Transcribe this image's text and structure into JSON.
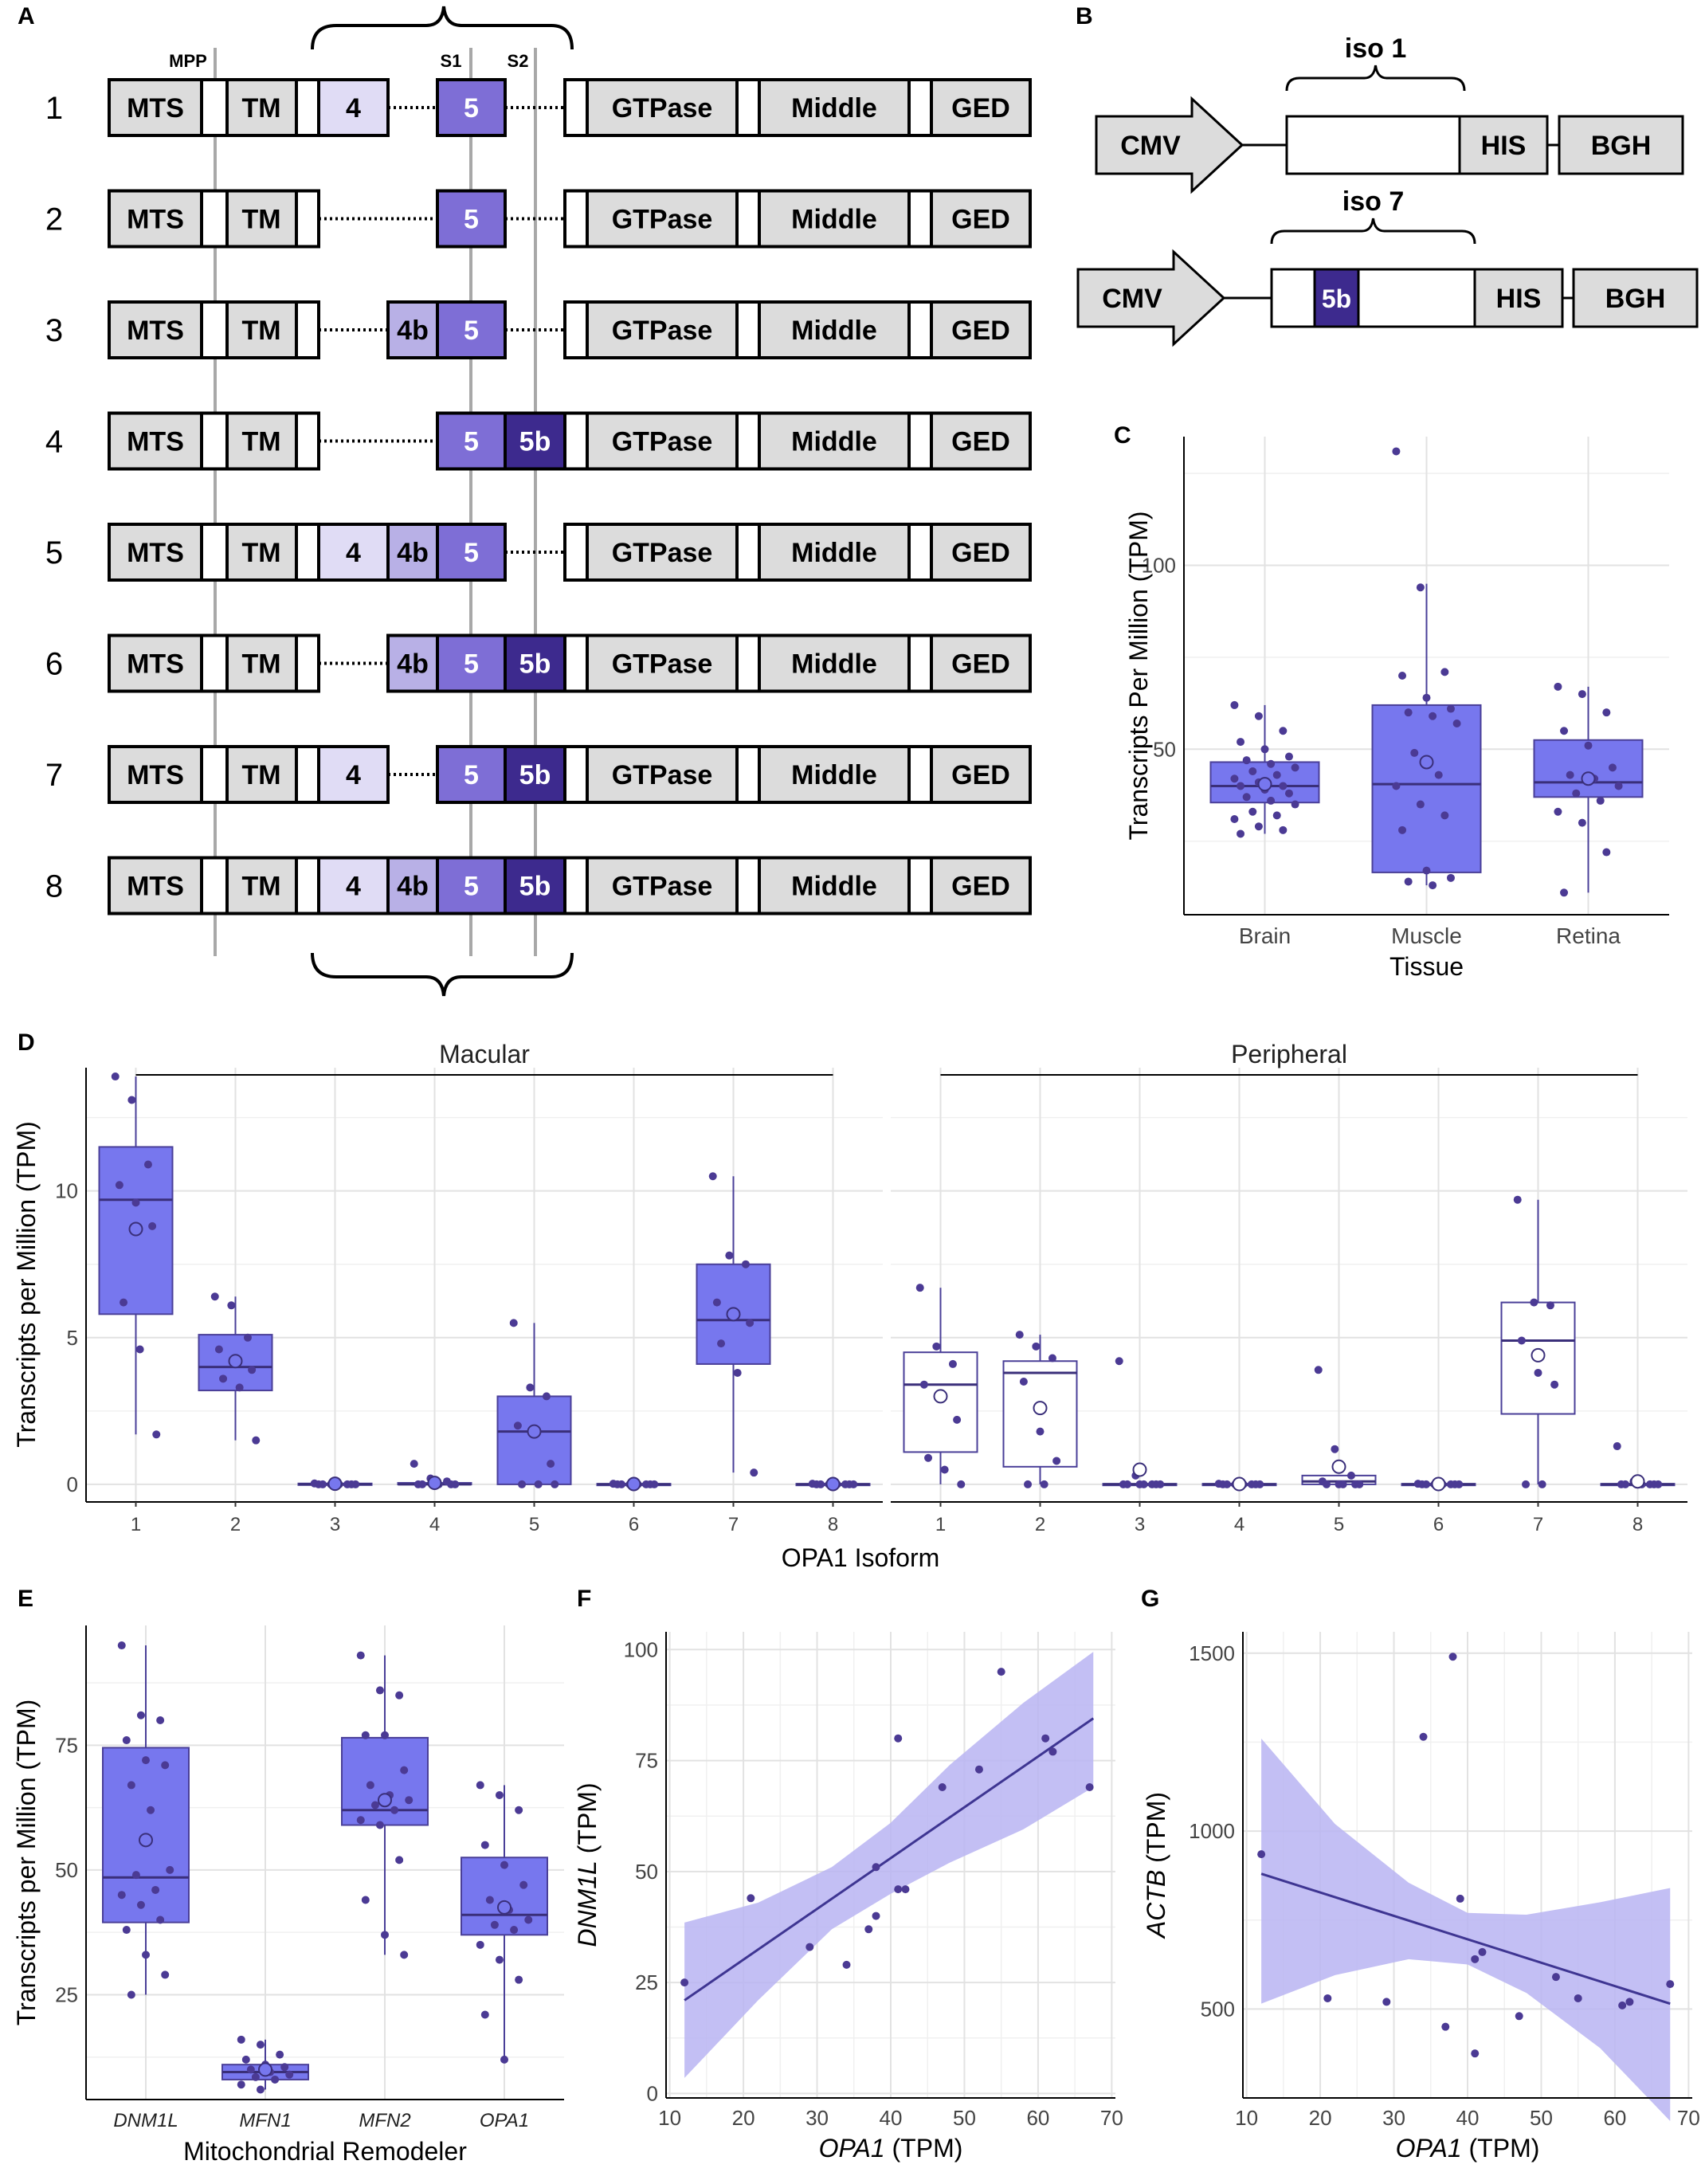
{
  "colors": {
    "box_fill": "#7777EE",
    "box_edge": "#4A3F98",
    "point": "#4B3A94",
    "exon4": "#E0DCF5",
    "exon4b": "#B8B0E6",
    "exon5": "#7E6ED6",
    "exon5b": "#3D2A8E",
    "gray_box": "#DCDCDC",
    "ci_band": "#B8B4F2",
    "reg_line": "#3E3592"
  },
  "panel_letters": [
    "A",
    "B",
    "C",
    "D",
    "E",
    "F",
    "G"
  ],
  "panel_a": {
    "markers": {
      "mpp": "MPP",
      "s1": "S1",
      "s2": "S2"
    },
    "domains": {
      "mts": "MTS",
      "tm": "TM",
      "gtpase": "GTPase",
      "middle": "Middle",
      "ged": "GED"
    },
    "exon_labels": {
      "e4": "4",
      "e4b": "4b",
      "e5": "5",
      "e5b": "5b"
    },
    "isoforms": [
      {
        "label": "1",
        "exons": [
          "4",
          "5"
        ]
      },
      {
        "label": "2",
        "exons": [
          "5"
        ]
      },
      {
        "label": "3",
        "exons": [
          "4b",
          "5"
        ]
      },
      {
        "label": "4",
        "exons": [
          "5",
          "5b"
        ]
      },
      {
        "label": "5",
        "exons": [
          "4",
          "4b",
          "5"
        ]
      },
      {
        "label": "6",
        "exons": [
          "4b",
          "5",
          "5b"
        ]
      },
      {
        "label": "7",
        "exons": [
          "4",
          "5",
          "5b"
        ]
      },
      {
        "label": "8",
        "exons": [
          "4",
          "4b",
          "5",
          "5b"
        ]
      }
    ]
  },
  "panel_b": {
    "constructs": [
      {
        "bracket_label": "iso 1",
        "promoter": "CMV",
        "insert": "",
        "tag": "HIS",
        "terminator": "BGH"
      },
      {
        "bracket_label": "iso 7",
        "promoter": "CMV",
        "insert": "5b",
        "tag": "HIS",
        "terminator": "BGH"
      }
    ]
  },
  "chart_data": [
    {
      "id": "C",
      "type": "box",
      "xlabel": "Tissue",
      "ylabel": "Transcripts Per Million (TPM)",
      "ylim": [
        5,
        135
      ],
      "yticks": [
        50,
        100
      ],
      "categories": [
        "Brain",
        "Muscle",
        "Retina"
      ],
      "boxes": [
        {
          "q1": 35.5,
          "median": 40,
          "q3": 46.5,
          "whisker_low": 27,
          "whisker_high": 62,
          "mean": 40.5,
          "points": [
            62,
            59,
            55,
            52,
            50,
            48,
            47,
            46,
            45,
            44,
            43,
            42,
            41,
            40,
            40,
            39,
            38,
            37,
            36,
            35,
            33,
            32,
            31,
            29,
            28,
            27
          ]
        },
        {
          "q1": 16.5,
          "median": 40.5,
          "q3": 62,
          "whisker_low": 13,
          "whisker_high": 95,
          "mean": 46.5,
          "points": [
            131,
            94,
            71,
            70,
            64,
            61,
            60,
            59,
            57,
            49,
            43,
            40,
            35,
            32,
            28,
            17,
            15,
            14,
            13
          ]
        },
        {
          "q1": 37,
          "median": 41,
          "q3": 52.5,
          "whisker_low": 11,
          "whisker_high": 67,
          "mean": 42,
          "points": [
            67,
            65,
            60,
            55,
            51,
            45,
            43,
            42,
            40,
            38,
            36,
            33,
            30,
            22,
            11
          ]
        }
      ]
    },
    {
      "id": "D",
      "type": "box",
      "xlabel": "OPA1 Isoform",
      "ylabel": "Transcripts per Million (TPM)",
      "ylim": [
        -0.6,
        14.2
      ],
      "yticks": [
        0,
        5,
        10
      ],
      "facets": [
        {
          "name": "Macular",
          "filled": true,
          "categories": [
            "1",
            "2",
            "3",
            "4",
            "5",
            "6",
            "7",
            "8"
          ],
          "boxes": [
            {
              "q1": 5.8,
              "median": 9.7,
              "q3": 11.5,
              "whisker_low": 1.7,
              "whisker_high": 13.9,
              "mean": 8.7,
              "points": [
                13.9,
                13.1,
                10.9,
                10.2,
                9.6,
                8.8,
                6.2,
                4.6,
                1.7
              ]
            },
            {
              "q1": 3.2,
              "median": 4.0,
              "q3": 5.1,
              "whisker_low": 1.5,
              "whisker_high": 6.4,
              "mean": 4.2,
              "points": [
                6.4,
                6.1,
                5.0,
                4.6,
                4.3,
                3.9,
                3.6,
                3.3,
                1.5
              ]
            },
            {
              "q1": 0,
              "median": 0,
              "q3": 0.03,
              "whisker_low": 0,
              "whisker_high": 0.03,
              "mean": 0.02,
              "points": [
                0.03,
                0,
                0,
                0,
                0,
                0,
                0,
                0,
                0
              ]
            },
            {
              "q1": 0,
              "median": 0,
              "q3": 0.05,
              "whisker_low": 0,
              "whisker_high": 0.05,
              "mean": 0.05,
              "points": [
                0.7,
                0.2,
                0.1,
                0,
                0,
                0,
                0,
                0,
                0
              ]
            },
            {
              "q1": 0,
              "median": 1.8,
              "q3": 3.0,
              "whisker_low": 0,
              "whisker_high": 5.5,
              "mean": 1.8,
              "points": [
                5.5,
                3.3,
                3.0,
                2.0,
                1.7,
                0.7,
                0,
                0,
                0
              ]
            },
            {
              "q1": 0,
              "median": 0,
              "q3": 0.02,
              "whisker_low": 0,
              "whisker_high": 0.02,
              "mean": 0.01,
              "points": [
                0.02,
                0,
                0,
                0,
                0,
                0,
                0,
                0,
                0
              ]
            },
            {
              "q1": 4.1,
              "median": 5.6,
              "q3": 7.5,
              "whisker_low": 0.4,
              "whisker_high": 10.5,
              "mean": 5.8,
              "points": [
                10.5,
                7.8,
                7.5,
                6.2,
                5.8,
                5.5,
                4.8,
                3.8,
                0.4
              ]
            },
            {
              "q1": 0,
              "median": 0,
              "q3": 0.02,
              "whisker_low": 0,
              "whisker_high": 0.02,
              "mean": 0.01,
              "points": [
                0.02,
                0,
                0,
                0,
                0,
                0,
                0,
                0,
                0
              ]
            }
          ]
        },
        {
          "name": "Peripheral",
          "filled": false,
          "categories": [
            "1",
            "2",
            "3",
            "4",
            "5",
            "6",
            "7",
            "8"
          ],
          "boxes": [
            {
              "q1": 1.1,
              "median": 3.4,
              "q3": 4.5,
              "whisker_low": 0,
              "whisker_high": 6.7,
              "mean": 3.0,
              "points": [
                6.7,
                4.7,
                4.1,
                3.4,
                2.9,
                2.2,
                0.9,
                0.5,
                0
              ]
            },
            {
              "q1": 0.6,
              "median": 3.8,
              "q3": 4.2,
              "whisker_low": 0,
              "whisker_high": 5.1,
              "mean": 2.6,
              "points": [
                5.1,
                4.7,
                4.3,
                3.5,
                1.8,
                0.8,
                0,
                0
              ]
            },
            {
              "q1": 0,
              "median": 0,
              "q3": 0.02,
              "whisker_low": 0,
              "whisker_high": 0.02,
              "mean": 0.5,
              "points": [
                4.2,
                0.3,
                0,
                0,
                0,
                0,
                0,
                0,
                0
              ]
            },
            {
              "q1": 0,
              "median": 0,
              "q3": 0.02,
              "whisker_low": 0,
              "whisker_high": 0.02,
              "mean": 0.01,
              "points": [
                0.02,
                0,
                0,
                0,
                0,
                0,
                0,
                0,
                0
              ]
            },
            {
              "q1": 0,
              "median": 0.1,
              "q3": 0.3,
              "whisker_low": 0,
              "whisker_high": 0.3,
              "mean": 0.6,
              "points": [
                3.9,
                1.2,
                0.3,
                0.1,
                0,
                0,
                0,
                0,
                0
              ]
            },
            {
              "q1": 0,
              "median": 0,
              "q3": 0.02,
              "whisker_low": 0,
              "whisker_high": 0.02,
              "mean": 0.01,
              "points": [
                0.02,
                0,
                0,
                0,
                0,
                0,
                0,
                0,
                0
              ]
            },
            {
              "q1": 2.4,
              "median": 4.9,
              "q3": 6.2,
              "whisker_low": 0,
              "whisker_high": 9.7,
              "mean": 4.4,
              "points": [
                9.7,
                6.2,
                6.1,
                4.9,
                3.8,
                3.4,
                0,
                0
              ]
            },
            {
              "q1": 0,
              "median": 0,
              "q3": 0.02,
              "whisker_low": 0,
              "whisker_high": 0.02,
              "mean": 0.1,
              "points": [
                1.3,
                0.1,
                0,
                0,
                0,
                0,
                0,
                0,
                0
              ]
            }
          ]
        }
      ]
    },
    {
      "id": "E",
      "type": "box",
      "xlabel": "Mitochondrial Remodeler",
      "ylabel": "Transcripts per Million (TPM)",
      "ylim": [
        4,
        99
      ],
      "yticks": [
        25,
        50,
        75
      ],
      "categories": [
        "DNM1L",
        "MFN1",
        "MFN2",
        "OPA1"
      ],
      "boxes": [
        {
          "q1": 39.5,
          "median": 48.5,
          "q3": 74.5,
          "whisker_low": 25,
          "whisker_high": 95,
          "mean": 56,
          "points": [
            95,
            81,
            80,
            76,
            72,
            71,
            67,
            62,
            50,
            49,
            46,
            45,
            43,
            40,
            38,
            33,
            29,
            25
          ]
        },
        {
          "q1": 8,
          "median": 9.5,
          "q3": 11,
          "whisker_low": 6,
          "whisker_high": 16,
          "mean": 10,
          "points": [
            16,
            15,
            13,
            12,
            11,
            10.5,
            10,
            9.5,
            9,
            8.5,
            8,
            7,
            6
          ]
        },
        {
          "q1": 59,
          "median": 62,
          "q3": 76.5,
          "whisker_low": 33,
          "whisker_high": 93,
          "mean": 64,
          "points": [
            93,
            86,
            85,
            77,
            77,
            70,
            67,
            65,
            64,
            63,
            62,
            60,
            59,
            52,
            44,
            37,
            33
          ]
        },
        {
          "q1": 37,
          "median": 41,
          "q3": 52.5,
          "whisker_low": 12,
          "whisker_high": 67,
          "mean": 42.5,
          "points": [
            67,
            65,
            62,
            55,
            51,
            47,
            44,
            42,
            40,
            39,
            38,
            35,
            32,
            28,
            21,
            12
          ]
        }
      ]
    },
    {
      "id": "F",
      "type": "scatter",
      "xlabel_gene": "OPA1",
      "xlabel_unit": " (TPM)",
      "ylabel_gene": "DNM1L",
      "ylabel_unit": " (TPM)",
      "xlim": [
        9.5,
        70.5
      ],
      "ylim": [
        -1,
        104
      ],
      "xticks": [
        10,
        20,
        30,
        40,
        50,
        60,
        70
      ],
      "yticks": [
        0,
        25,
        50,
        75,
        100
      ],
      "points": [
        [
          12,
          25
        ],
        [
          21,
          44
        ],
        [
          29,
          33
        ],
        [
          34,
          29
        ],
        [
          37,
          37
        ],
        [
          38,
          40
        ],
        [
          38,
          51
        ],
        [
          41,
          80
        ],
        [
          41,
          46
        ],
        [
          42,
          46
        ],
        [
          47,
          69
        ],
        [
          52,
          73
        ],
        [
          55,
          95
        ],
        [
          61,
          80
        ],
        [
          62,
          77
        ],
        [
          67,
          69
        ]
      ],
      "fit": {
        "x": [
          12,
          67.5
        ],
        "y": [
          21,
          84.5
        ]
      },
      "ci_band": {
        "x": [
          12,
          22,
          32,
          40,
          48,
          58,
          67.5
        ],
        "lower": [
          3.5,
          21,
          37,
          45,
          52,
          59.5,
          69
        ],
        "upper": [
          38.5,
          43,
          51,
          61,
          74,
          88,
          99.5
        ]
      }
    },
    {
      "id": "G",
      "type": "scatter",
      "xlabel_gene": "OPA1",
      "xlabel_unit": " (TPM)",
      "ylabel_gene": "ACTB",
      "ylabel_unit": " (TPM)",
      "xlim": [
        9.5,
        70.5
      ],
      "ylim": [
        250,
        1560
      ],
      "xticks": [
        10,
        20,
        30,
        40,
        50,
        60,
        70
      ],
      "yticks": [
        500,
        1000,
        1500
      ],
      "points": [
        [
          12,
          935
        ],
        [
          21,
          530
        ],
        [
          29,
          520
        ],
        [
          34,
          1265
        ],
        [
          37,
          450
        ],
        [
          38,
          1490
        ],
        [
          39,
          810
        ],
        [
          41,
          640
        ],
        [
          41,
          375
        ],
        [
          42,
          660
        ],
        [
          47,
          480
        ],
        [
          52,
          590
        ],
        [
          55,
          530
        ],
        [
          61,
          510
        ],
        [
          62,
          520
        ],
        [
          67.5,
          570
        ]
      ],
      "fit": {
        "x": [
          12,
          67.5
        ],
        "y": [
          880,
          515
        ]
      },
      "ci_band": {
        "x": [
          12,
          22,
          32,
          40,
          48,
          58,
          67.5
        ],
        "lower": [
          515,
          595,
          640,
          625,
          545,
          390,
          185
        ],
        "upper": [
          1260,
          1020,
          855,
          770,
          765,
          800,
          840
        ]
      }
    }
  ]
}
